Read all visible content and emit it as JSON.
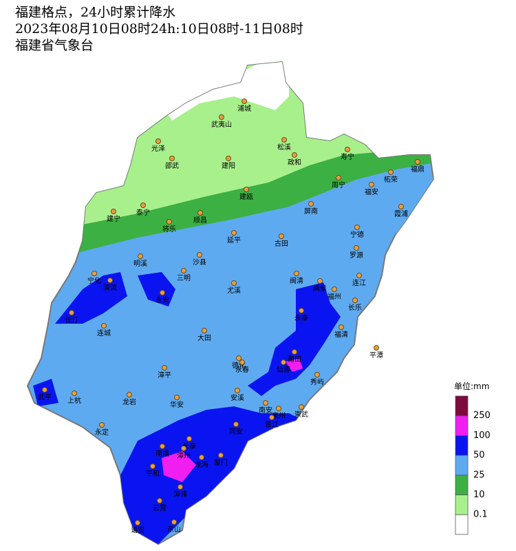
{
  "header": {
    "lines": [
      "福建格点，24小时累计降水",
      "2023年08月10日08时24h:10日08时-11日08时",
      "福建省气象台"
    ]
  },
  "cities": [
    "浦城",
    "武夷山",
    "光泽",
    "松溪",
    "邵武",
    "建阳",
    "政和",
    "寿宁",
    "福鼎",
    "柘荣",
    "周宁",
    "福安",
    "建瓯",
    "泰宁",
    "建宁",
    "屏南",
    "霞浦",
    "将乐",
    "顺昌",
    "宁德",
    "延平",
    "古田",
    "罗源",
    "明溪",
    "沙县",
    "宁化",
    "清流",
    "三明",
    "闽清",
    "尤溪",
    "闽侯",
    "连江",
    "福州",
    "永安",
    "长乐",
    "长汀",
    "永泰",
    "连城",
    "大田",
    "福清",
    "平潭",
    "德化",
    "莆田",
    "永春",
    "仙游",
    "漳平",
    "秀屿",
    "武平",
    "上杭",
    "龙岩",
    "华安",
    "安溪",
    "南安",
    "泉州",
    "崇武",
    "晋江",
    "永定",
    "同安",
    "长泰",
    "南靖",
    "漳州",
    "厦门",
    "龙海",
    "平和",
    "漳浦",
    "云霄",
    "诏安",
    "东山"
  ],
  "legend": {
    "unit": "单位:mm",
    "ticks": [
      0.1,
      10,
      25,
      50,
      100,
      250
    ],
    "colors": [
      "#ffffff",
      "#a8f08c",
      "#3cb043",
      "#5eaaf0",
      "#0a14f0",
      "#f01ef0",
      "#7d0a3c"
    ]
  }
}
